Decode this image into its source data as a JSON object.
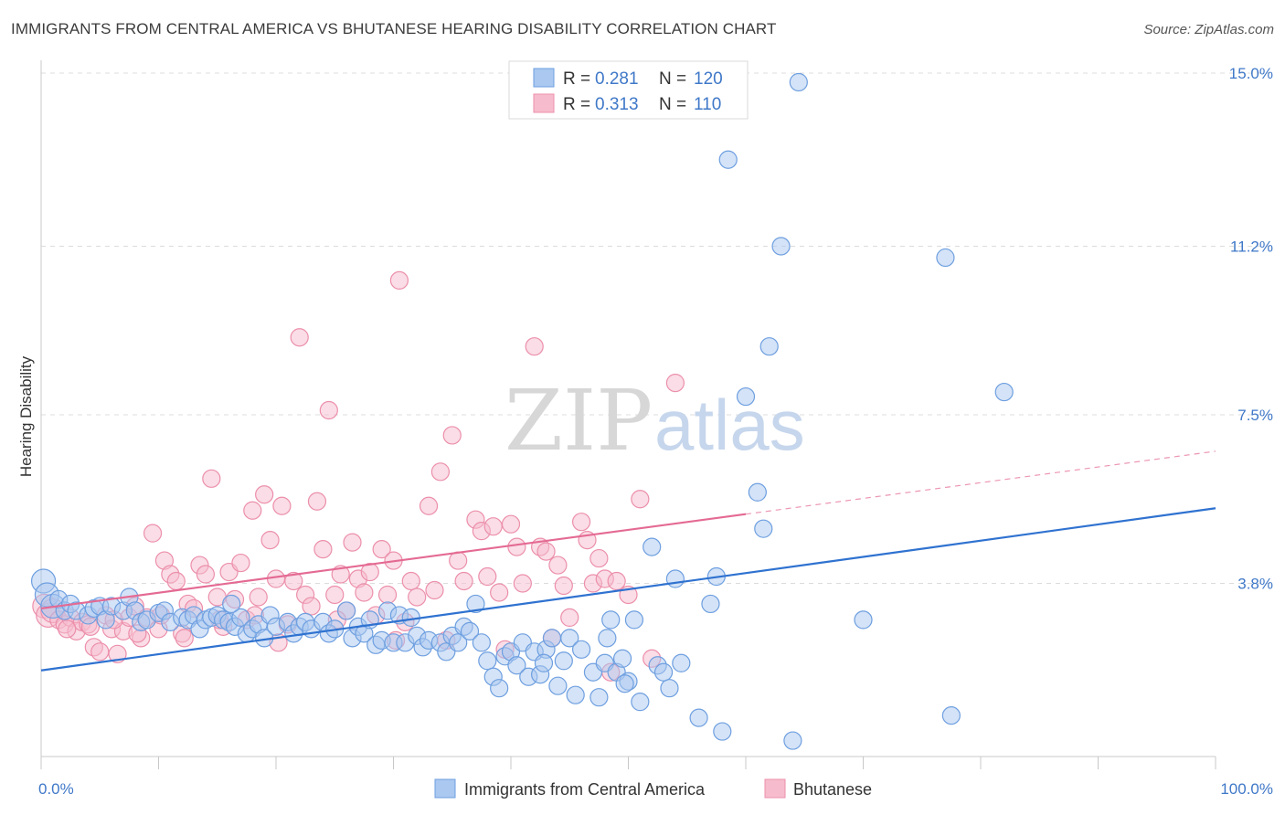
{
  "header": {
    "title": "IMMIGRANTS FROM CENTRAL AMERICA VS BHUTANESE HEARING DISABILITY CORRELATION CHART",
    "source": "Source: ZipAtlas.com"
  },
  "watermark": {
    "part1": "ZIP",
    "part2": "atlas"
  },
  "colors": {
    "blue_fill": "#aac8f0",
    "blue_stroke": "#6e9fe0",
    "blue_line": "#2f72d0",
    "pink_fill": "#f6bccd",
    "pink_stroke": "#ec8fab",
    "pink_line": "#e46a93",
    "accent_text": "#3f78c8"
  },
  "legend": {
    "rows": [
      {
        "r_label": "R = ",
        "r_value": "0.281",
        "n_label": "N = ",
        "n_value": "120",
        "series": "blue"
      },
      {
        "r_label": "R = ",
        "r_value": "0.313",
        "n_label": "N = ",
        "n_value": "110",
        "series": "pink"
      }
    ]
  },
  "chart_data": {
    "type": "scatter",
    "title": "IMMIGRANTS FROM CENTRAL AMERICA VS BHUTANESE HEARING DISABILITY CORRELATION CHART",
    "xlabel": "",
    "ylabel": "Hearing Disability",
    "xlim": [
      0,
      100
    ],
    "ylim": [
      0,
      15
    ],
    "x_tick_labels": [
      "0.0%",
      "100.0%"
    ],
    "y_ticks": [
      3.8,
      7.5,
      11.2,
      15.0
    ],
    "y_tick_labels": [
      "3.8%",
      "7.5%",
      "11.2%",
      "15.0%"
    ],
    "grid": true,
    "legend_position": "top-center",
    "series": [
      {
        "name": "Immigrants from Central America",
        "color": "#6e9fe0",
        "trend": {
          "x": [
            0,
            100
          ],
          "y": [
            1.89,
            5.45
          ]
        },
        "points": [
          [
            0.2,
            3.85
          ],
          [
            0.5,
            3.55
          ],
          [
            1,
            3.3
          ],
          [
            1.5,
            3.45
          ],
          [
            2,
            3.2
          ],
          [
            2.5,
            3.35
          ],
          [
            3,
            3.2
          ],
          [
            4,
            3.1
          ],
          [
            4.5,
            3.25
          ],
          [
            5,
            3.3
          ],
          [
            5.5,
            3.0
          ],
          [
            6,
            3.3
          ],
          [
            7,
            3.2
          ],
          [
            7.5,
            3.5
          ],
          [
            8,
            3.2
          ],
          [
            8.5,
            2.95
          ],
          [
            9,
            3.0
          ],
          [
            10,
            3.15
          ],
          [
            10.5,
            3.2
          ],
          [
            11,
            2.95
          ],
          [
            12,
            3.05
          ],
          [
            12.5,
            3.0
          ],
          [
            13,
            3.1
          ],
          [
            13.5,
            2.8
          ],
          [
            14,
            3.0
          ],
          [
            14.5,
            3.05
          ],
          [
            15,
            3.1
          ],
          [
            15.5,
            3.0
          ],
          [
            16,
            2.95
          ],
          [
            16.5,
            2.85
          ],
          [
            17,
            3.05
          ],
          [
            17.5,
            2.7
          ],
          [
            18,
            2.8
          ],
          [
            18.5,
            2.9
          ],
          [
            19,
            2.6
          ],
          [
            19.5,
            3.1
          ],
          [
            20,
            2.85
          ],
          [
            21,
            2.95
          ],
          [
            21.5,
            2.7
          ],
          [
            22,
            2.85
          ],
          [
            22.5,
            2.95
          ],
          [
            23,
            2.8
          ],
          [
            24,
            2.95
          ],
          [
            24.5,
            2.7
          ],
          [
            25,
            2.8
          ],
          [
            26,
            3.2
          ],
          [
            26.5,
            2.6
          ],
          [
            27,
            2.85
          ],
          [
            27.5,
            2.7
          ],
          [
            28,
            3.0
          ],
          [
            28.5,
            2.45
          ],
          [
            29,
            2.55
          ],
          [
            29.5,
            3.2
          ],
          [
            30,
            2.5
          ],
          [
            30.5,
            3.1
          ],
          [
            31,
            2.5
          ],
          [
            31.5,
            3.05
          ],
          [
            32,
            2.65
          ],
          [
            32.5,
            2.4
          ],
          [
            33,
            2.55
          ],
          [
            34,
            2.5
          ],
          [
            34.5,
            2.3
          ],
          [
            35,
            2.65
          ],
          [
            35.5,
            2.5
          ],
          [
            36,
            2.85
          ],
          [
            36.5,
            2.75
          ],
          [
            37,
            3.35
          ],
          [
            37.5,
            2.5
          ],
          [
            38,
            2.1
          ],
          [
            38.5,
            1.75
          ],
          [
            39,
            1.5
          ],
          [
            39.5,
            2.2
          ],
          [
            40,
            2.3
          ],
          [
            40.5,
            2.0
          ],
          [
            41,
            2.5
          ],
          [
            41.5,
            1.75
          ],
          [
            42,
            2.3
          ],
          [
            42.5,
            1.8
          ],
          [
            43,
            2.35
          ],
          [
            43.5,
            2.6
          ],
          [
            44,
            1.55
          ],
          [
            44.5,
            2.1
          ],
          [
            45,
            2.6
          ],
          [
            46,
            2.35
          ],
          [
            47,
            1.85
          ],
          [
            47.5,
            1.3
          ],
          [
            48,
            2.05
          ],
          [
            48.5,
            3.0
          ],
          [
            49,
            1.85
          ],
          [
            49.5,
            2.15
          ],
          [
            50,
            1.65
          ],
          [
            50.5,
            3.0
          ],
          [
            51,
            1.2
          ],
          [
            52,
            4.6
          ],
          [
            52.5,
            2.0
          ],
          [
            53,
            1.85
          ],
          [
            54,
            3.9
          ],
          [
            54.5,
            2.05
          ],
          [
            56,
            0.85
          ],
          [
            57,
            3.35
          ],
          [
            57.5,
            3.95
          ],
          [
            58,
            0.55
          ],
          [
            58.5,
            13.1
          ],
          [
            60,
            7.9
          ],
          [
            61,
            5.8
          ],
          [
            61.5,
            5.0
          ],
          [
            62,
            9.0
          ],
          [
            63,
            11.2
          ],
          [
            64,
            0.35
          ],
          [
            64.5,
            14.8
          ],
          [
            70,
            3.0
          ],
          [
            77,
            10.95
          ],
          [
            77.5,
            0.9
          ],
          [
            82,
            8.0
          ],
          [
            53.5,
            1.5
          ],
          [
            48.2,
            2.6
          ],
          [
            45.5,
            1.35
          ],
          [
            42.8,
            2.05
          ],
          [
            49.7,
            1.6
          ],
          [
            16.2,
            3.35
          ]
        ]
      },
      {
        "name": "Bhutanese",
        "color": "#ec8fab",
        "trend": {
          "x": [
            0,
            60
          ],
          "y": [
            3.25,
            5.32
          ]
        },
        "trend_extension": {
          "x": [
            60,
            100
          ],
          "y": [
            5.32,
            6.7
          ]
        },
        "points": [
          [
            0.3,
            3.3
          ],
          [
            0.6,
            3.1
          ],
          [
            1,
            3.2
          ],
          [
            1.5,
            3.0
          ],
          [
            2,
            2.9
          ],
          [
            2.5,
            3.05
          ],
          [
            3,
            2.75
          ],
          [
            3.5,
            2.95
          ],
          [
            4,
            2.9
          ],
          [
            4.5,
            2.4
          ],
          [
            5,
            2.3
          ],
          [
            5.5,
            3.1
          ],
          [
            6,
            2.8
          ],
          [
            6.5,
            2.25
          ],
          [
            7,
            2.75
          ],
          [
            7.5,
            3.05
          ],
          [
            8,
            3.3
          ],
          [
            8.5,
            2.6
          ],
          [
            9,
            3.05
          ],
          [
            9.5,
            4.9
          ],
          [
            10,
            2.8
          ],
          [
            10.5,
            4.3
          ],
          [
            11,
            4.0
          ],
          [
            11.5,
            3.85
          ],
          [
            12,
            2.7
          ],
          [
            12.5,
            3.35
          ],
          [
            13,
            3.25
          ],
          [
            13.5,
            4.2
          ],
          [
            14,
            4.0
          ],
          [
            14.5,
            6.1
          ],
          [
            15,
            3.5
          ],
          [
            15.5,
            2.85
          ],
          [
            16,
            4.05
          ],
          [
            16.5,
            3.45
          ],
          [
            17,
            4.25
          ],
          [
            17.5,
            3.0
          ],
          [
            18,
            5.4
          ],
          [
            18.5,
            3.5
          ],
          [
            19,
            5.75
          ],
          [
            19.5,
            4.75
          ],
          [
            20,
            3.9
          ],
          [
            20.5,
            5.5
          ],
          [
            21,
            2.9
          ],
          [
            21.5,
            3.85
          ],
          [
            22,
            9.2
          ],
          [
            22.5,
            3.55
          ],
          [
            23,
            3.3
          ],
          [
            23.5,
            5.6
          ],
          [
            24,
            4.55
          ],
          [
            24.5,
            7.6
          ],
          [
            25,
            3.55
          ],
          [
            25.5,
            4.0
          ],
          [
            26,
            3.2
          ],
          [
            26.5,
            4.7
          ],
          [
            27,
            3.9
          ],
          [
            27.5,
            3.6
          ],
          [
            28,
            4.05
          ],
          [
            28.5,
            3.1
          ],
          [
            29,
            4.55
          ],
          [
            29.5,
            3.55
          ],
          [
            30,
            4.3
          ],
          [
            30.5,
            10.45
          ],
          [
            31,
            2.95
          ],
          [
            31.5,
            3.85
          ],
          [
            32,
            3.5
          ],
          [
            33,
            5.5
          ],
          [
            33.5,
            3.65
          ],
          [
            34,
            6.25
          ],
          [
            34.5,
            2.55
          ],
          [
            35,
            7.05
          ],
          [
            35.5,
            4.3
          ],
          [
            36,
            3.85
          ],
          [
            37,
            5.2
          ],
          [
            37.5,
            4.95
          ],
          [
            38,
            3.95
          ],
          [
            38.5,
            5.05
          ],
          [
            39,
            3.6
          ],
          [
            39.5,
            2.35
          ],
          [
            40,
            5.1
          ],
          [
            40.5,
            4.6
          ],
          [
            41,
            3.8
          ],
          [
            42,
            9.0
          ],
          [
            42.5,
            4.6
          ],
          [
            43,
            4.5
          ],
          [
            43.5,
            2.6
          ],
          [
            44,
            4.2
          ],
          [
            44.5,
            3.75
          ],
          [
            45,
            3.05
          ],
          [
            46,
            5.15
          ],
          [
            46.5,
            4.75
          ],
          [
            47,
            3.8
          ],
          [
            47.5,
            4.35
          ],
          [
            48,
            3.9
          ],
          [
            48.5,
            1.85
          ],
          [
            49,
            3.85
          ],
          [
            50,
            3.55
          ],
          [
            51,
            5.65
          ],
          [
            52,
            2.15
          ],
          [
            54,
            8.2
          ],
          [
            30.2,
            2.55
          ],
          [
            25.2,
            3.0
          ],
          [
            20.2,
            2.5
          ],
          [
            18.2,
            3.1
          ],
          [
            15.2,
            3.0
          ],
          [
            12.2,
            2.6
          ],
          [
            10.2,
            3.1
          ],
          [
            8.2,
            2.7
          ],
          [
            6.2,
            3.0
          ],
          [
            4.2,
            2.85
          ],
          [
            2.2,
            2.8
          ]
        ]
      }
    ]
  },
  "bottom_legend": [
    {
      "label": "Immigrants from Central America",
      "series": "blue"
    },
    {
      "label": "Bhutanese",
      "series": "pink"
    }
  ]
}
